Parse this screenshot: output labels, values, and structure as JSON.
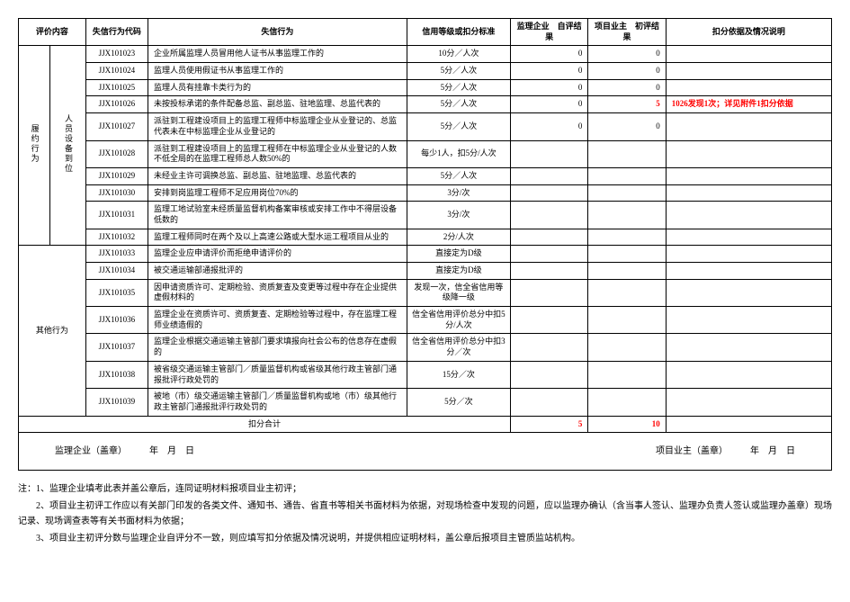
{
  "headers": {
    "eval_content": "评价内容",
    "code": "失信行为代码",
    "behavior": "失信行为",
    "standard": "信用等级或扣分标准",
    "self_result": "监理企业　自评结果",
    "owner_result": "项目业主　初评结果",
    "explain": "扣分依据及情况说明"
  },
  "category": "履约行为",
  "subcategory": "人员设备到位",
  "other_category": "其他行为",
  "rows_perf": [
    {
      "code": "JJX101023",
      "behavior": "企业所属监理人员冒用他人证书从事监理工作的",
      "standard": "10分／人次",
      "self": "0",
      "owner": "0",
      "explain": ""
    },
    {
      "code": "JJX101024",
      "behavior": "监理人员使用假证书从事监理工作的",
      "standard": "5分／人次",
      "self": "0",
      "owner": "0",
      "explain": ""
    },
    {
      "code": "JJX101025",
      "behavior": "监理人员有挂靠卡类行为的",
      "standard": "5分／人次",
      "self": "0",
      "owner": "0",
      "explain": ""
    },
    {
      "code": "JJX101026",
      "behavior": "未按投标承诺的条件配备总监、副总监、驻地监理、总监代表的",
      "standard": "5分／人次",
      "self": "0",
      "owner": "5",
      "explain": "1026发现1次；详见附件1扣分依据"
    },
    {
      "code": "JJX101027",
      "behavior": "派驻到工程建设项目上的监理工程师中标监理企业从业登记的、总监代表未在中标监理企业从业登记的",
      "standard": "5分／人次",
      "self": "0",
      "owner": "0",
      "explain": ""
    },
    {
      "code": "JJX101028",
      "behavior": "派驻到工程建设项目上的监理工程师在中标监理企业从业登记的人数不低全局的在监理工程师总人数50%的",
      "standard": "每少1人，扣5分/人次",
      "self": "",
      "owner": "",
      "explain": ""
    },
    {
      "code": "JJX101029",
      "behavior": "未经业主许可调换总监、副总监、驻地监理、总监代表的",
      "standard": "5分／人次",
      "self": "",
      "owner": "",
      "explain": ""
    },
    {
      "code": "JJX101030",
      "behavior": "安排到岗监理工程师不足应用岗位70%的",
      "standard": "3分/次",
      "self": "",
      "owner": "",
      "explain": ""
    },
    {
      "code": "JJX101031",
      "behavior": "监理工地试验室未经质量监督机构备案审核或安排工作中不得层设备低数的",
      "standard": "3分/次",
      "self": "",
      "owner": "",
      "explain": ""
    },
    {
      "code": "JJX101032",
      "behavior": "监理工程师同时在两个及以上高速公路或大型水运工程项目从业的",
      "standard": "2分/人次",
      "self": "",
      "owner": "",
      "explain": ""
    }
  ],
  "rows_other": [
    {
      "code": "JJX101033",
      "behavior": "监理企业应申请评价而拒绝申请评价的",
      "standard": "直接定为D级",
      "self": "",
      "owner": "",
      "explain": ""
    },
    {
      "code": "JJX101034",
      "behavior": "被交通运输部通报批评的",
      "standard": "直接定为D级",
      "self": "",
      "owner": "",
      "explain": ""
    },
    {
      "code": "JJX101035",
      "behavior": "因申请资质许可、定期检验、资质复查及变更等过程中存在企业提供虚假材料的",
      "standard": "发现一次，信全省信用等级降一级",
      "self": "",
      "owner": "",
      "explain": ""
    },
    {
      "code": "JJX101036",
      "behavior": "监理企业在资质许可、资质复查、定期检验等过程中，存在监理工程师业绩造假的",
      "standard": "信全省信用评价总分中扣5分/人次",
      "self": "",
      "owner": "",
      "explain": ""
    },
    {
      "code": "JJX101037",
      "behavior": "监理企业根据交通运输主管部门要求填报向社会公布的信息存在虚假的",
      "standard": "信全省信用评价总分中扣3分／次",
      "self": "",
      "owner": "",
      "explain": ""
    },
    {
      "code": "JJX101038",
      "behavior": "被省级交通运输主管部门／质量监督机构或省级其他行政主管部门通报批评行政处罚的",
      "standard": "15分／次",
      "self": "",
      "owner": "",
      "explain": ""
    },
    {
      "code": "JJX101039",
      "behavior": "被地（市）级交通运输主管部门／质量监督机构或地（市）级其他行政主管部门通报批评行政处罚的",
      "standard": "5分／次",
      "self": "",
      "owner": "",
      "explain": ""
    }
  ],
  "subtotal": {
    "label": "扣分合计",
    "self": "5",
    "owner": "10"
  },
  "signatures": {
    "enterprise": "监理企业（盖章）　　　年　月　日",
    "owner": "项目业主（盖章）　　　年　月　日"
  },
  "notes": {
    "l1": "注：1、监理企业填考此表并盖公章后，连同证明材料报项目业主初评；",
    "l2": "　　2、项目业主初评工作应以有关部门印发的各类文件、通知书、通告、省直书等相关书面材料为依据，对现场检查中发现的问题，应以监理办确认（含当事人签认、监理办负责人签认或监理办盖章）现场记录、现场调查表等有关书面材料为依据；",
    "l3": "　　3、项目业主初评分数与监理企业自评分不一致，则应填写扣分依据及情况说明，并提供相应证明材料，盖公章后报项目主管质监站机构。"
  },
  "colors": {
    "red": "#ff0000",
    "border": "#000000",
    "background": "#ffffff"
  }
}
